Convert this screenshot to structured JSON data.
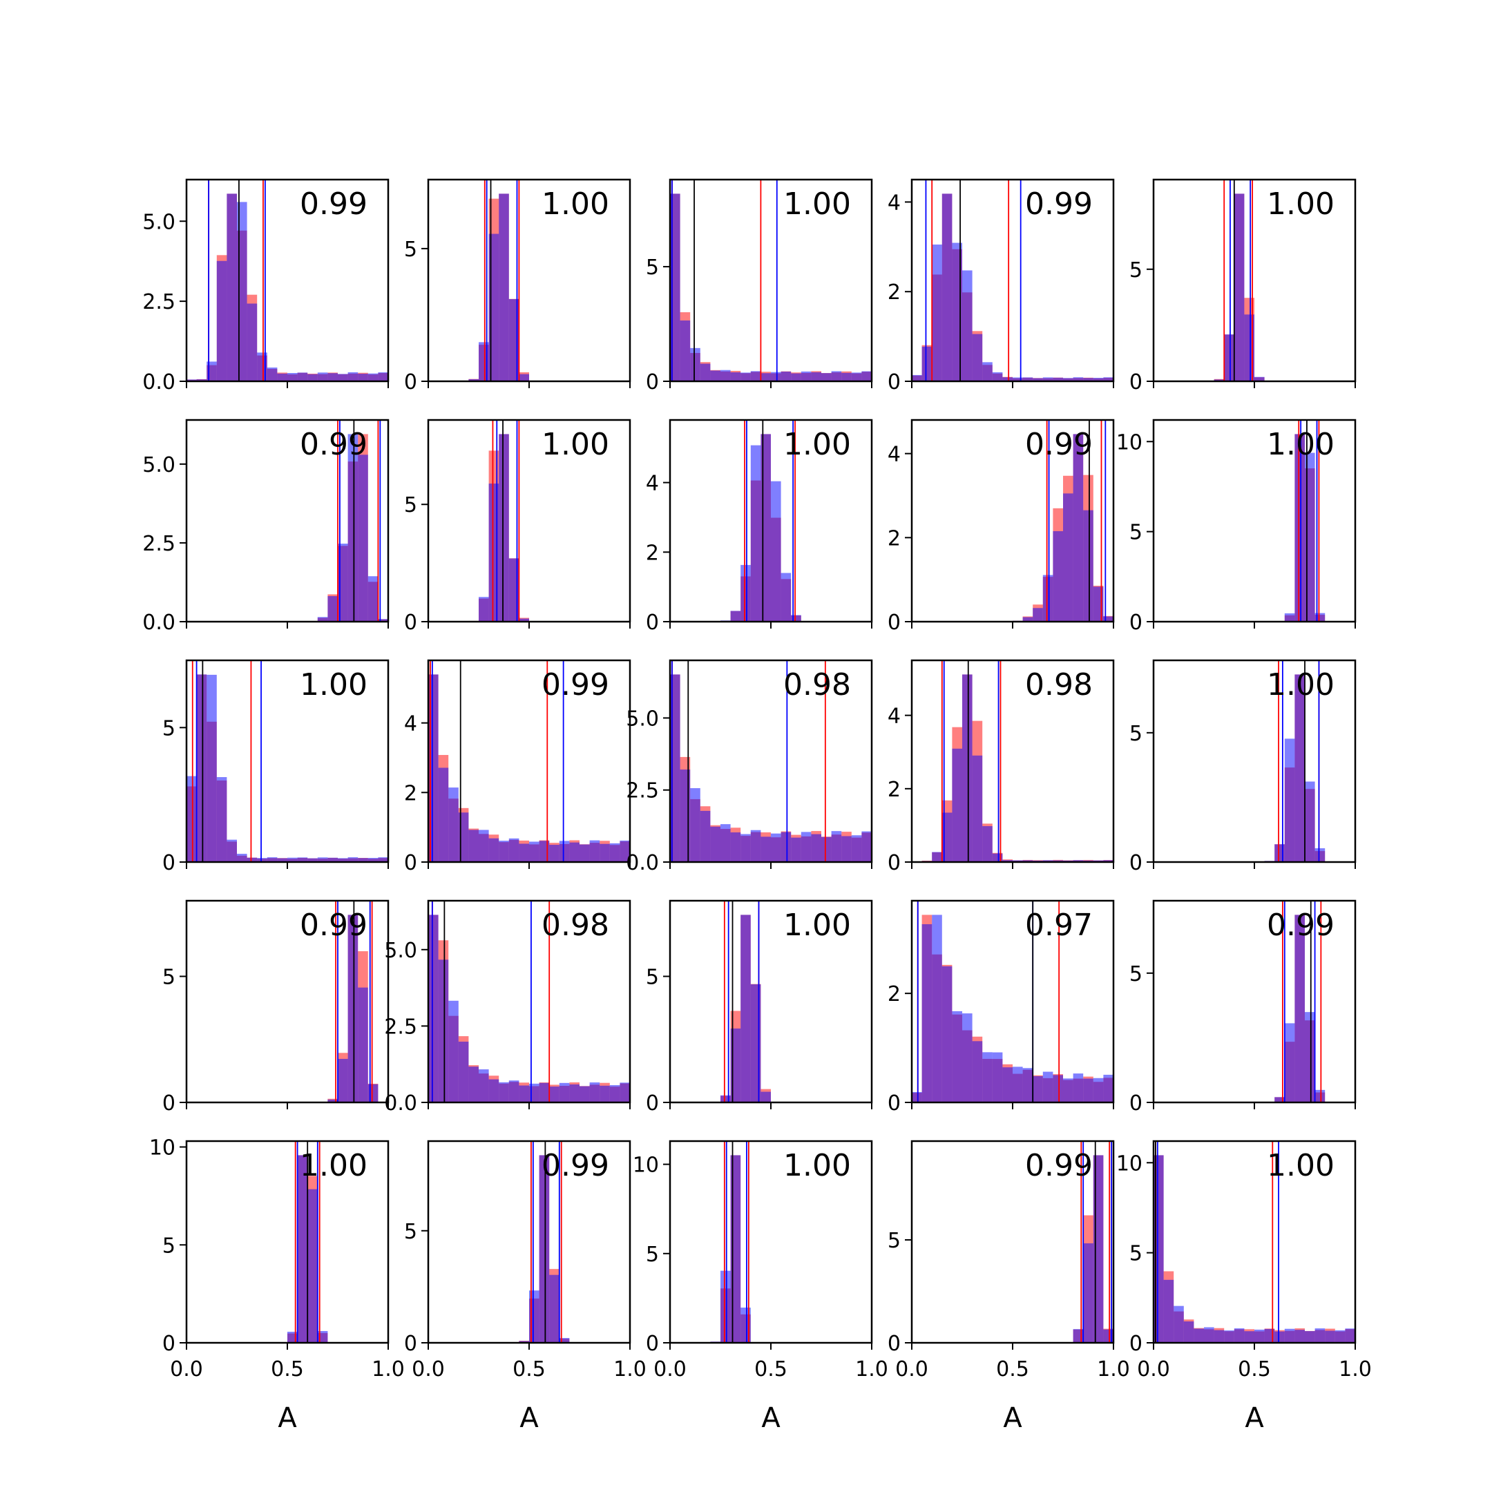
{
  "figure": {
    "xlabel": "A",
    "colors": {
      "red": "#ff0000",
      "blue": "#0000ff",
      "median": "#000000",
      "overlap": "#8040c0"
    }
  },
  "chart_data": {
    "type": "histogram-grid",
    "rows": 5,
    "cols": 5,
    "xlim": [
      0,
      1
    ],
    "xticks": [
      "0.0",
      "0.5",
      "1.0"
    ],
    "xlabel": "A",
    "panels": [
      {
        "label": "0.99",
        "mode": 0.22,
        "spread": 0.055,
        "shape": "skewr",
        "tail": 0.04,
        "ymax": 6.3,
        "yticks": [
          {
            "v": 0,
            "t": "0.0"
          },
          {
            "v": 2.5,
            "t": "2.5"
          },
          {
            "v": 5,
            "t": "5.0"
          }
        ],
        "median": 0.26,
        "red_lines": [
          0.11,
          0.38
        ],
        "blue_lines": [
          0.11,
          0.39
        ]
      },
      {
        "label": "1.00",
        "mode": 0.36,
        "spread": 0.045,
        "shape": "normal",
        "tail": 0,
        "ymax": 7.6,
        "yticks": [
          {
            "v": 0,
            "t": "0"
          },
          {
            "v": 5,
            "t": "5"
          }
        ],
        "median": 0.31,
        "red_lines": [
          0.28,
          0.45
        ],
        "blue_lines": [
          0.29,
          0.44
        ]
      },
      {
        "label": "1.00",
        "mode": 0.02,
        "spread": 0.05,
        "shape": "decay",
        "tail": 0.05,
        "ymax": 8.8,
        "yticks": [
          {
            "v": 0,
            "t": "0"
          },
          {
            "v": 5,
            "t": "5"
          }
        ],
        "median": 0.12,
        "red_lines": [
          0.01,
          0.45
        ],
        "blue_lines": [
          0.01,
          0.53
        ]
      },
      {
        "label": "0.99",
        "mode": 0.17,
        "spread": 0.07,
        "shape": "skewr",
        "tail": 0.02,
        "ymax": 4.5,
        "yticks": [
          {
            "v": 0,
            "t": "0"
          },
          {
            "v": 2,
            "t": "2"
          },
          {
            "v": 4,
            "t": "4"
          }
        ],
        "median": 0.24,
        "red_lines": [
          0.1,
          0.48
        ],
        "blue_lines": [
          0.07,
          0.54
        ]
      },
      {
        "label": "1.00",
        "mode": 0.43,
        "spread": 0.035,
        "shape": "normal",
        "tail": 0,
        "ymax": 9.0,
        "yticks": [
          {
            "v": 0,
            "t": "0"
          },
          {
            "v": 5,
            "t": "5"
          }
        ],
        "median": 0.4,
        "red_lines": [
          0.35,
          0.49
        ],
        "blue_lines": [
          0.38,
          0.48
        ]
      },
      {
        "label": "0.99",
        "mode": 0.86,
        "spread": 0.05,
        "shape": "skewl",
        "tail": 0,
        "ymax": 6.4,
        "yticks": [
          {
            "v": 0,
            "t": "0.0"
          },
          {
            "v": 2.5,
            "t": "2.5"
          },
          {
            "v": 5,
            "t": "5.0"
          }
        ],
        "median": 0.83,
        "red_lines": [
          0.75,
          0.95
        ],
        "blue_lines": [
          0.76,
          0.96
        ]
      },
      {
        "label": "1.00",
        "mode": 0.36,
        "spread": 0.04,
        "shape": "normal",
        "tail": 0,
        "ymax": 8.6,
        "yticks": [
          {
            "v": 0,
            "t": "0"
          },
          {
            "v": 5,
            "t": "5"
          }
        ],
        "median": 0.37,
        "red_lines": [
          0.32,
          0.45
        ],
        "blue_lines": [
          0.34,
          0.44
        ]
      },
      {
        "label": "1.00",
        "mode": 0.47,
        "spread": 0.06,
        "shape": "normal",
        "tail": 0,
        "ymax": 5.8,
        "yticks": [
          {
            "v": 0,
            "t": "0"
          },
          {
            "v": 2,
            "t": "2"
          },
          {
            "v": 4,
            "t": "4"
          }
        ],
        "median": 0.46,
        "red_lines": [
          0.37,
          0.62
        ],
        "blue_lines": [
          0.38,
          0.61
        ]
      },
      {
        "label": "0.99",
        "mode": 0.83,
        "spread": 0.07,
        "shape": "skewl",
        "tail": 0,
        "ymax": 4.8,
        "yticks": [
          {
            "v": 0,
            "t": "0"
          },
          {
            "v": 2,
            "t": "2"
          },
          {
            "v": 4,
            "t": "4"
          }
        ],
        "median": 0.88,
        "red_lines": [
          0.67,
          0.94
        ],
        "blue_lines": [
          0.68,
          0.96
        ]
      },
      {
        "label": "1.00",
        "mode": 0.75,
        "spread": 0.028,
        "shape": "normal",
        "tail": 0,
        "ymax": 11.2,
        "yticks": [
          {
            "v": 0,
            "t": "0"
          },
          {
            "v": 5,
            "t": "5"
          },
          {
            "v": 10,
            "t": "10"
          }
        ],
        "median": 0.76,
        "red_lines": [
          0.72,
          0.82
        ],
        "blue_lines": [
          0.73,
          0.81
        ]
      },
      {
        "label": "1.00",
        "mode": 0.08,
        "spread": 0.05,
        "shape": "skewr",
        "tail": 0.02,
        "ymax": 7.5,
        "yticks": [
          {
            "v": 0,
            "t": "0"
          },
          {
            "v": 5,
            "t": "5"
          }
        ],
        "median": 0.08,
        "red_lines": [
          0.03,
          0.32
        ],
        "blue_lines": [
          0.05,
          0.37
        ]
      },
      {
        "label": "0.99",
        "mode": 0.02,
        "spread": 0.09,
        "shape": "decay",
        "tail": 0.12,
        "ymax": 5.8,
        "yticks": [
          {
            "v": 0,
            "t": "0"
          },
          {
            "v": 2,
            "t": "2"
          },
          {
            "v": 4,
            "t": "4"
          }
        ],
        "median": 0.16,
        "red_lines": [
          0.01,
          0.59
        ],
        "blue_lines": [
          0.02,
          0.67
        ]
      },
      {
        "label": "0.98",
        "mode": 0.02,
        "spread": 0.08,
        "shape": "decay",
        "tail": 0.18,
        "ymax": 7.0,
        "yticks": [
          {
            "v": 0,
            "t": "0.0"
          },
          {
            "v": 2.5,
            "t": "2.5"
          },
          {
            "v": 5,
            "t": "5.0"
          }
        ],
        "median": 0.09,
        "red_lines": [
          0.01,
          0.77
        ],
        "blue_lines": [
          0.01,
          0.58
        ]
      },
      {
        "label": "0.98",
        "mode": 0.27,
        "spread": 0.06,
        "shape": "normal",
        "tail": 0.01,
        "ymax": 5.5,
        "yticks": [
          {
            "v": 0,
            "t": "0"
          },
          {
            "v": 2,
            "t": "2"
          },
          {
            "v": 4,
            "t": "4"
          }
        ],
        "median": 0.28,
        "red_lines": [
          0.15,
          0.44
        ],
        "blue_lines": [
          0.16,
          0.43
        ]
      },
      {
        "label": "1.00",
        "mode": 0.72,
        "spread": 0.045,
        "shape": "normal",
        "tail": 0,
        "ymax": 7.8,
        "yticks": [
          {
            "v": 0,
            "t": "0"
          },
          {
            "v": 5,
            "t": "5"
          }
        ],
        "median": 0.75,
        "red_lines": [
          0.62,
          0.82
        ],
        "blue_lines": [
          0.64,
          0.82
        ]
      },
      {
        "label": "0.99",
        "mode": 0.84,
        "spread": 0.04,
        "shape": "normal",
        "tail": 0,
        "ymax": 8.0,
        "yticks": [
          {
            "v": 0,
            "t": "0"
          },
          {
            "v": 5,
            "t": "5"
          }
        ],
        "median": 0.83,
        "red_lines": [
          0.74,
          0.92
        ],
        "blue_lines": [
          0.75,
          0.91
        ]
      },
      {
        "label": "0.98",
        "mode": 0.04,
        "spread": 0.08,
        "shape": "decay",
        "tail": 0.08,
        "ymax": 6.6,
        "yticks": [
          {
            "v": 0,
            "t": "0.0"
          },
          {
            "v": 2.5,
            "t": "2.5"
          },
          {
            "v": 5,
            "t": "5.0"
          }
        ],
        "median": 0.08,
        "red_lines": [
          0.02,
          0.6
        ],
        "blue_lines": [
          0.02,
          0.51
        ]
      },
      {
        "label": "1.00",
        "mode": 0.38,
        "spread": 0.04,
        "shape": "normal",
        "tail": 0,
        "ymax": 8.0,
        "yticks": [
          {
            "v": 0,
            "t": "0"
          },
          {
            "v": 5,
            "t": "5"
          }
        ],
        "median": 0.31,
        "red_lines": [
          0.27,
          0.44
        ],
        "blue_lines": [
          0.29,
          0.44
        ]
      },
      {
        "label": "0.97",
        "mode": 0.08,
        "spread": 0.15,
        "shape": "decay",
        "tail": 0.12,
        "ymax": 3.7,
        "yticks": [
          {
            "v": 0,
            "t": "0"
          },
          {
            "v": 2,
            "t": "2"
          }
        ],
        "median": 0.6,
        "red_lines": [
          0.03,
          0.73
        ],
        "blue_lines": [
          0.03,
          0.6
        ]
      },
      {
        "label": "0.99",
        "mode": 0.73,
        "spread": 0.04,
        "shape": "normal",
        "tail": 0,
        "ymax": 7.8,
        "yticks": [
          {
            "v": 0,
            "t": "0"
          },
          {
            "v": 5,
            "t": "5"
          }
        ],
        "median": 0.78,
        "red_lines": [
          0.64,
          0.83
        ],
        "blue_lines": [
          0.65,
          0.8
        ]
      },
      {
        "label": "1.00",
        "mode": 0.6,
        "spread": 0.03,
        "shape": "normal",
        "tail": 0,
        "ymax": 10.3,
        "yticks": [
          {
            "v": 0,
            "t": "0"
          },
          {
            "v": 5,
            "t": "5"
          },
          {
            "v": 10,
            "t": "10"
          }
        ],
        "median": 0.6,
        "red_lines": [
          0.54,
          0.66
        ],
        "blue_lines": [
          0.55,
          0.65
        ]
      },
      {
        "label": "0.99",
        "mode": 0.58,
        "spread": 0.035,
        "shape": "normal",
        "tail": 0,
        "ymax": 9.0,
        "yticks": [
          {
            "v": 0,
            "t": "0"
          },
          {
            "v": 5,
            "t": "5"
          }
        ],
        "median": 0.58,
        "red_lines": [
          0.51,
          0.66
        ],
        "blue_lines": [
          0.52,
          0.65
        ]
      },
      {
        "label": "1.00",
        "mode": 0.32,
        "spread": 0.03,
        "shape": "normal",
        "tail": 0,
        "ymax": 11.3,
        "yticks": [
          {
            "v": 0,
            "t": "0"
          },
          {
            "v": 5,
            "t": "5"
          },
          {
            "v": 10,
            "t": "10"
          }
        ],
        "median": 0.31,
        "red_lines": [
          0.27,
          0.39
        ],
        "blue_lines": [
          0.28,
          0.38
        ]
      },
      {
        "label": "0.99",
        "mode": 0.92,
        "spread": 0.03,
        "shape": "skewl",
        "tail": 0,
        "ymax": 9.8,
        "yticks": [
          {
            "v": 0,
            "t": "0"
          },
          {
            "v": 5,
            "t": "5"
          }
        ],
        "median": 0.91,
        "red_lines": [
          0.84,
          0.98
        ],
        "blue_lines": [
          0.85,
          0.99
        ]
      },
      {
        "label": "1.00",
        "mode": 0.01,
        "spread": 0.05,
        "shape": "decay",
        "tail": 0.06,
        "ymax": 11.2,
        "yticks": [
          {
            "v": 0,
            "t": "0"
          },
          {
            "v": 5,
            "t": "5"
          },
          {
            "v": 10,
            "t": "10"
          }
        ],
        "median": 0.01,
        "red_lines": [
          0.01,
          0.59
        ],
        "blue_lines": [
          0.02,
          0.62
        ]
      }
    ]
  }
}
